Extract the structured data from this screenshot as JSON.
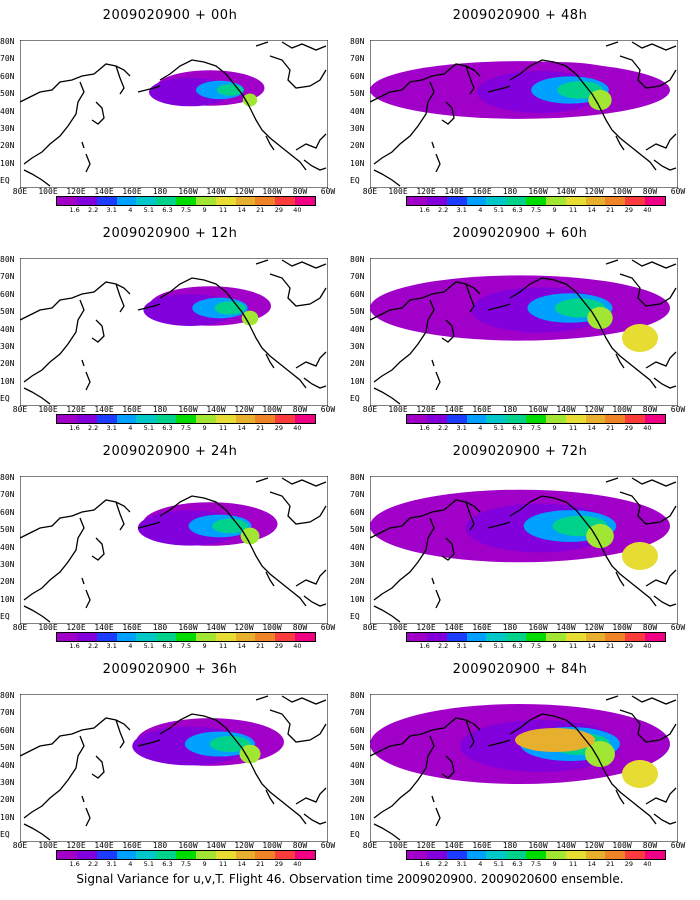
{
  "figure": {
    "caption": "Signal Variance for u,v,T. Flight 46. Observation time 2009020900. 2009020600 ensemble."
  },
  "panels": [
    {
      "title": "2009020900 + 00h"
    },
    {
      "title": "2009020900 + 48h"
    },
    {
      "title": "2009020900 + 12h"
    },
    {
      "title": "2009020900 + 60h"
    },
    {
      "title": "2009020900 + 24h"
    },
    {
      "title": "2009020900 + 72h"
    },
    {
      "title": "2009020900 + 36h"
    },
    {
      "title": "2009020900 + 84h"
    }
  ],
  "axes": {
    "lat_labels": [
      "80N",
      "70N",
      "60N",
      "50N",
      "40N",
      "30N",
      "20N",
      "10N",
      "EQ"
    ],
    "lon_labels": [
      "80E",
      "100E",
      "120E",
      "140E",
      "160E",
      "180",
      "160W",
      "140W",
      "120W",
      "100W",
      "80W",
      "60W"
    ]
  },
  "colorbar": {
    "labels": [
      "1.6",
      "2.2",
      "3.1",
      "4",
      "5.1",
      "6.3",
      "7.5",
      "9",
      "11",
      "14",
      "21",
      "29",
      "40"
    ],
    "colors": [
      "#a000c8",
      "#8200dc",
      "#1e3cff",
      "#00a0ff",
      "#00c8c8",
      "#00d28c",
      "#00dc00",
      "#a0e632",
      "#e6dc32",
      "#e6af2d",
      "#f08228",
      "#fa3c3c",
      "#f00082"
    ]
  }
}
